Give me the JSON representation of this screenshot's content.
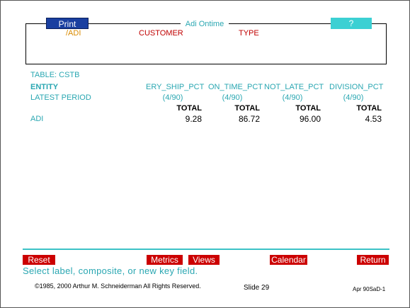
{
  "header": {
    "print_label": "Print",
    "title": "Adi Ontime",
    "help_label": "?",
    "fields": {
      "adi": "/ADI",
      "customer": "CUSTOMER",
      "type": "TYPE"
    }
  },
  "table": {
    "table_label": "TABLE: CSTB",
    "entity_label": "ENTITY",
    "period_label": "LATEST PERIOD",
    "columns": [
      {
        "name": "ERY_SHIP_PCT",
        "period": "(4/90)",
        "total_label": "TOTAL",
        "adi_value": "9.28"
      },
      {
        "name": "ON_TIME_PCT",
        "period": "(4/90)",
        "total_label": "TOTAL",
        "adi_value": "86.72"
      },
      {
        "name": "NOT_LATE_PCT",
        "period": "(4/90)",
        "total_label": "TOTAL",
        "adi_value": "96.00"
      },
      {
        "name": "DIVISION_PCT",
        "period": "(4/90)",
        "total_label": "TOTAL",
        "adi_value": "4.53"
      }
    ],
    "row_label": "ADI"
  },
  "toolbar": {
    "reset": "Reset",
    "metrics": "Metrics",
    "views": "Views",
    "calendar": "Calendar",
    "return": "Return"
  },
  "prompt": "Select label, composite, or new key field.",
  "footer": {
    "copyright": "©1985, 2000 Arthur M. Schneiderman  All Rights Reserved.",
    "slide": "Slide 29",
    "code": "Apr 90SaD-1"
  },
  "colors": {
    "teal": "#2aa7b2",
    "red": "#cc0000",
    "navy": "#1a3fa0",
    "cyan": "#3cd0d3",
    "orange": "#d98a00"
  }
}
